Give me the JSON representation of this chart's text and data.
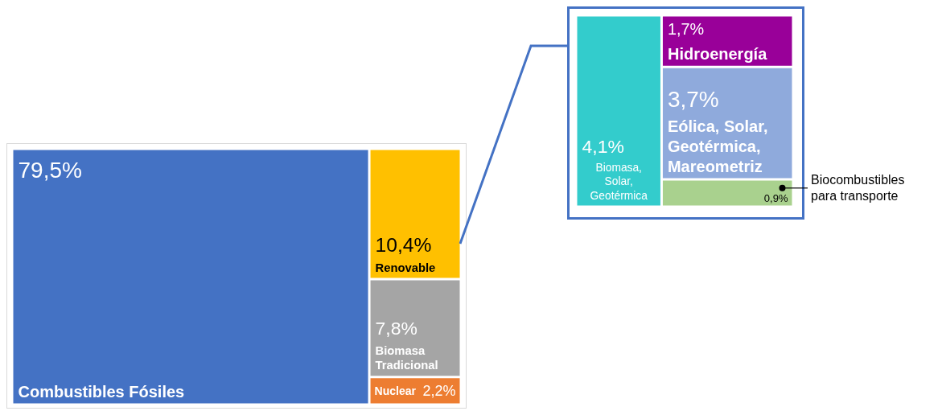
{
  "chart_data": [
    {
      "type": "other",
      "categories": [
        "Combustibles Fósiles",
        "Renovable",
        "Biomasa Tradicional",
        "Nuclear"
      ],
      "values": [
        79.5,
        10.4,
        7.8,
        2.2
      ],
      "value_labels": [
        "79,5%",
        "10,4%",
        "7,8%",
        "2,2%"
      ],
      "colors": [
        "#4472c4",
        "#ffc000",
        "#a5a5a5",
        "#ed7d31"
      ]
    },
    {
      "type": "other",
      "categories": [
        "Biomasa, Solar, Geotérmica",
        "Hidroenergía",
        "Eólica, Solar, Geotérmica, Mareometriz",
        "Biocombustibles para transporte"
      ],
      "values": [
        4.1,
        1.7,
        3.7,
        0.9
      ],
      "value_labels": [
        "4,1%",
        "1,7%",
        "3,7%",
        "0,9%"
      ],
      "colors": [
        "#33cccc",
        "#990099",
        "#8faadc",
        "#a9d18e"
      ]
    }
  ]
}
